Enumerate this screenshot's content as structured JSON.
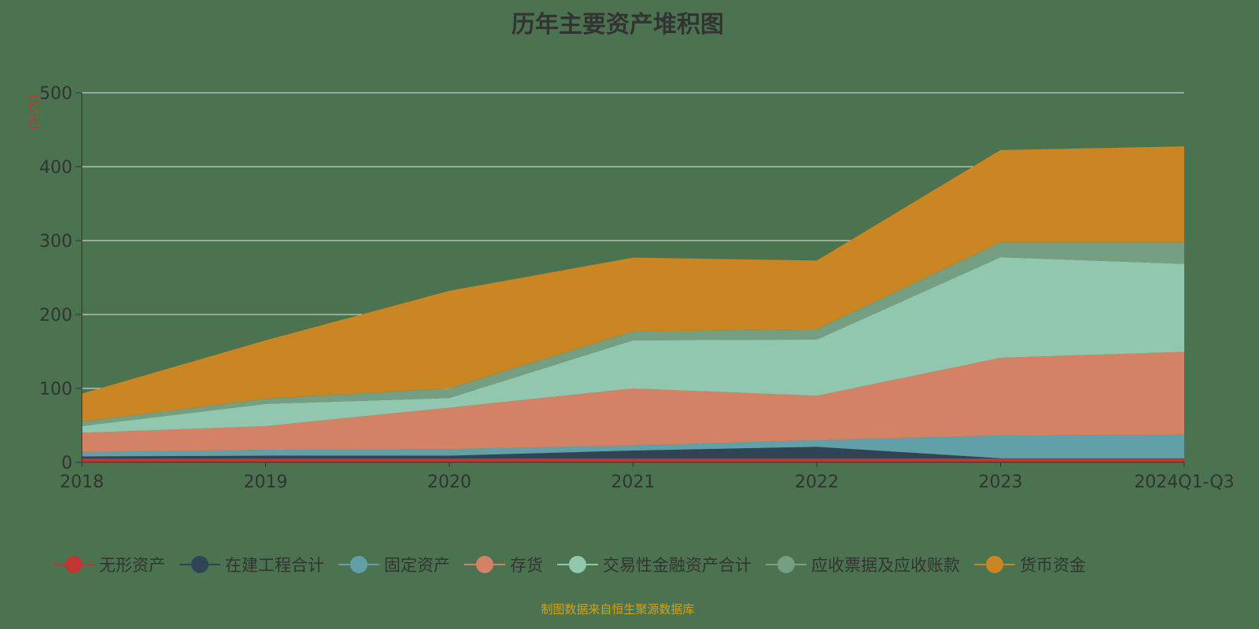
{
  "chart_data": {
    "type": "area",
    "stacked": true,
    "title": "历年主要资产堆积图",
    "ylabel": "(亿元)",
    "xlabel": "",
    "ylim": [
      0,
      500
    ],
    "yticks": [
      0,
      100,
      200,
      300,
      400,
      500
    ],
    "grid": true,
    "legend_position": "bottom",
    "categories": [
      "2018",
      "2019",
      "2020",
      "2021",
      "2022",
      "2023",
      "2024Q1-Q3"
    ],
    "series": [
      {
        "name": "无形资产",
        "color": "#c23531",
        "values": [
          5,
          5,
          5,
          5,
          5,
          5,
          5
        ]
      },
      {
        "name": "在建工程合计",
        "color": "#2f4554",
        "values": [
          3,
          4,
          4,
          11,
          16,
          0.5,
          0.5
        ]
      },
      {
        "name": "固定资产",
        "color": "#61a0a8",
        "values": [
          6,
          8,
          9,
          7,
          9,
          31,
          32
        ]
      },
      {
        "name": "存货",
        "color": "#d48265",
        "values": [
          26,
          32,
          56,
          77,
          60,
          105,
          112
        ]
      },
      {
        "name": "交易性金融资产合计",
        "color": "#91c7ae",
        "values": [
          9,
          30,
          13,
          65,
          76,
          136,
          119
        ]
      },
      {
        "name": "应收票据及应收账款",
        "color": "#749f83",
        "values": [
          6,
          7,
          13,
          12,
          14,
          20,
          29
        ]
      },
      {
        "name": "货币资金",
        "color": "#ca8622",
        "values": [
          38,
          79,
          132,
          100,
          93,
          125,
          130
        ]
      }
    ]
  },
  "footer": "制图数据来自恒生聚源数据库"
}
